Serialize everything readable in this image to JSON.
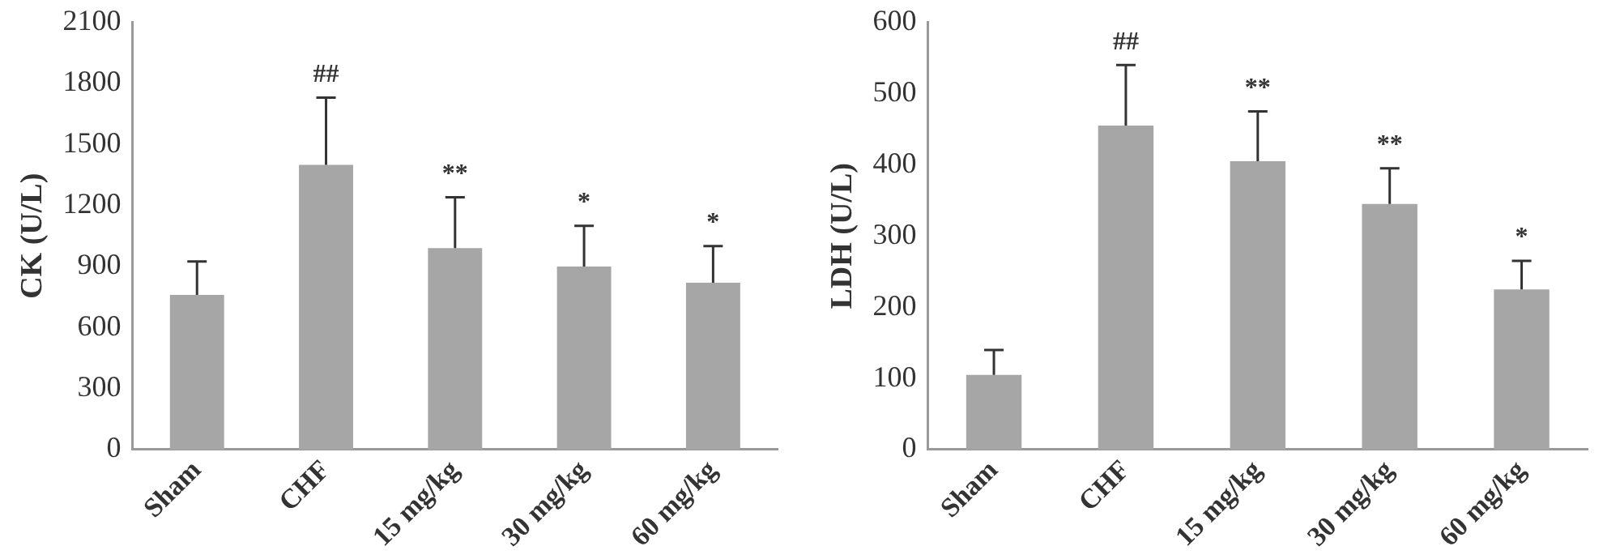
{
  "chart_data": [
    {
      "type": "bar",
      "ylabel": "CK (U/L)",
      "categories": [
        "Sham",
        "CHF",
        "15 mg/kg",
        "30 mg/kg",
        "60 mg/kg"
      ],
      "values": [
        760,
        1400,
        990,
        900,
        820
      ],
      "errors": [
        [
          760,
          925
        ],
        [
          1400,
          1730
        ],
        [
          990,
          1240
        ],
        [
          900,
          1100
        ],
        [
          820,
          1000
        ]
      ],
      "color": "#a6a6a6",
      "ylim": [
        0,
        2100
      ],
      "yticks": [
        0,
        300,
        600,
        900,
        1200,
        1500,
        1800,
        2100
      ],
      "grid": false,
      "legend": false,
      "annotations": [
        {
          "text": "##",
          "x": "CHF",
          "y": 1730
        },
        {
          "text": "**",
          "x": "15 mg/kg",
          "y": 1240
        },
        {
          "text": "*",
          "x": "30 mg/kg",
          "y": 1100
        },
        {
          "text": "*",
          "x": "60 mg/kg",
          "y": 1000
        }
      ]
    },
    {
      "type": "bar",
      "ylabel": "LDH (U/L)",
      "categories": [
        "Sham",
        "CHF",
        "15 mg/kg",
        "30 mg/kg",
        "60 mg/kg"
      ],
      "values": [
        105,
        455,
        405,
        345,
        225
      ],
      "errors": [
        [
          105,
          140
        ],
        [
          455,
          540
        ],
        [
          405,
          475
        ],
        [
          345,
          395
        ],
        [
          225,
          265
        ]
      ],
      "color": "#a6a6a6",
      "ylim": [
        0,
        600
      ],
      "yticks": [
        0,
        100,
        200,
        300,
        400,
        500,
        600
      ],
      "grid": false,
      "legend": false,
      "annotations": [
        {
          "text": "##",
          "x": "CHF",
          "y": 540
        },
        {
          "text": "**",
          "x": "15 mg/kg",
          "y": 475
        },
        {
          "text": "**",
          "x": "30 mg/kg",
          "y": 395
        },
        {
          "text": "*",
          "x": "60 mg/kg",
          "y": 265
        }
      ]
    }
  ]
}
